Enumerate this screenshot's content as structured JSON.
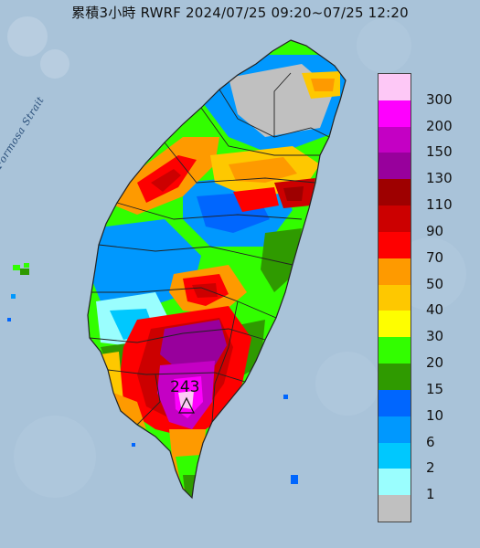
{
  "title": "累積3小時 RWRF 2024/07/25 09:20~07/25 12:20",
  "map_label": "Formosa Strait",
  "max_value_label": "243",
  "legend": [
    {
      "label": "300",
      "color": "#fdc8f6"
    },
    {
      "label": "200",
      "color": "#fe00fe"
    },
    {
      "label": "150",
      "color": "#c400c4"
    },
    {
      "label": "130",
      "color": "#98009c"
    },
    {
      "label": "110",
      "color": "#9e0000"
    },
    {
      "label": "90",
      "color": "#cc0000"
    },
    {
      "label": "70",
      "color": "#fe0000"
    },
    {
      "label": "50",
      "color": "#fe9a00"
    },
    {
      "label": "40",
      "color": "#fec800"
    },
    {
      "label": "30",
      "color": "#fefe00"
    },
    {
      "label": "20",
      "color": "#32fe00"
    },
    {
      "label": "15",
      "color": "#2f9a00"
    },
    {
      "label": "10",
      "color": "#0066fe"
    },
    {
      "label": "6",
      "color": "#0098fe"
    },
    {
      "label": "2",
      "color": "#00c8fe"
    },
    {
      "label": "1",
      "color": "#9afefe"
    },
    {
      "label": "",
      "color": "#c0c0c0"
    }
  ],
  "colors": {
    "sea": "#a9c3d9",
    "land_gray": "#c0c0c0",
    "border": "#222222"
  }
}
